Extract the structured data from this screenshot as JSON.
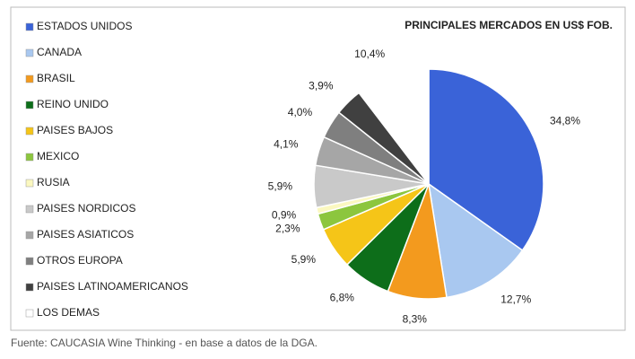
{
  "chart_data": {
    "type": "pie",
    "title": "PRINCIPALES MERCADOS EN US$ FOB.",
    "categories": [
      "ESTADOS UNIDOS",
      "CANADA",
      "BRASIL",
      "REINO UNIDO",
      "PAISES BAJOS",
      "MEXICO",
      "RUSIA",
      "PAISES NORDICOS",
      "PAISES ASIATICOS",
      "OTROS EUROPA",
      "PAISES LATINOAMERICANOS",
      "LOS DEMAS"
    ],
    "values": [
      34.8,
      12.7,
      8.3,
      6.8,
      5.9,
      2.3,
      0.9,
      5.9,
      4.1,
      4.0,
      3.9,
      10.4
    ],
    "value_labels": [
      "34,8%",
      "12,7%",
      "8,3%",
      "6,8%",
      "5,9%",
      "2,3%",
      "0,9%",
      "5,9%",
      "4,1%",
      "4,0%",
      "3,9%",
      "10,4%"
    ],
    "colors": [
      "#3a63d8",
      "#a9c8f0",
      "#f39a1e",
      "#0d6e1a",
      "#f5c518",
      "#8cc63e",
      "#fbf8c0",
      "#c9c9c9",
      "#a6a6a6",
      "#7f7f7f",
      "#404040",
      "#ffffff"
    ],
    "legend": "left"
  },
  "source": "Fuente: CAUCASIA Wine Thinking - en base a datos de la DGA."
}
